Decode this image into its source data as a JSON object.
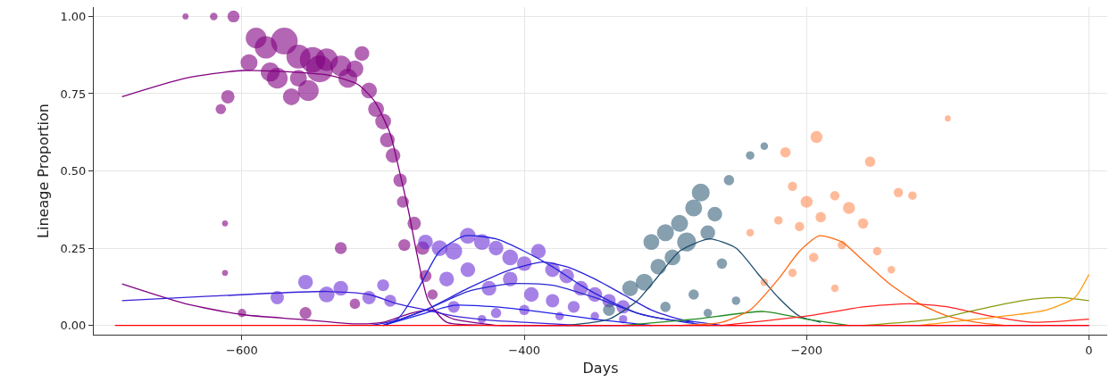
{
  "chart_data": {
    "type": "line",
    "xlabel": "Days",
    "ylabel": "Lineage Proportion",
    "xlim": [
      -705,
      13
    ],
    "ylim": [
      -0.03,
      1.03
    ],
    "xticks": [
      {
        "value": -600,
        "label": "−600"
      },
      {
        "value": -400,
        "label": "−400"
      },
      {
        "value": -200,
        "label": "−200"
      },
      0
    ],
    "yticks": [
      {
        "value": 0,
        "label": "0.00"
      },
      {
        "value": 0.25,
        "label": "0.25"
      },
      {
        "value": 0.5,
        "label": "0.50"
      },
      {
        "value": 0.75,
        "label": "0.75"
      },
      {
        "value": 1,
        "label": "1.00"
      }
    ],
    "grid": true,
    "line_style": "solid",
    "series": [
      {
        "type": "bubble",
        "color": "#800080",
        "x": [
          -640,
          -620,
          -606,
          -590,
          -583,
          -570,
          -560,
          -550,
          -545,
          -540,
          -530,
          -525,
          -520,
          -575,
          -595,
          -580,
          -560,
          -553,
          -565,
          -515,
          -510,
          -505,
          -500,
          -497,
          -493,
          -488,
          -486,
          -478,
          -472,
          -485,
          -470,
          -465,
          -610,
          -615,
          -612,
          -612,
          -600,
          -555,
          -520,
          -530
        ],
        "values": [
          1.0,
          1.0,
          1.0,
          0.93,
          0.9,
          0.92,
          0.87,
          0.86,
          0.83,
          0.86,
          0.84,
          0.8,
          0.83,
          0.8,
          0.85,
          0.82,
          0.8,
          0.76,
          0.74,
          0.88,
          0.76,
          0.7,
          0.66,
          0.6,
          0.55,
          0.47,
          0.4,
          0.33,
          0.25,
          0.26,
          0.16,
          0.1,
          0.74,
          0.7,
          0.33,
          0.17,
          0.04,
          0.04,
          0.07,
          0.25
        ],
        "sizes": [
          0.05,
          0.08,
          0.2,
          0.6,
          0.7,
          1.0,
          0.8,
          0.9,
          1.0,
          0.7,
          0.6,
          0.5,
          0.4,
          0.6,
          0.4,
          0.5,
          0.4,
          0.6,
          0.4,
          0.3,
          0.35,
          0.35,
          0.35,
          0.3,
          0.3,
          0.25,
          0.2,
          0.25,
          0.25,
          0.2,
          0.2,
          0.15,
          0.25,
          0.15,
          0.05,
          0.05,
          0.1,
          0.2,
          0.15,
          0.2
        ]
      },
      {
        "type": "bubble",
        "color": "#6a2fd6",
        "x": [
          -470,
          -460,
          -450,
          -440,
          -430,
          -420,
          -410,
          -400,
          -390,
          -380,
          -370,
          -360,
          -350,
          -340,
          -330,
          -455,
          -440,
          -425,
          -410,
          -395,
          -380,
          -365,
          -450,
          -420,
          -400,
          -375,
          -350,
          -430,
          -330,
          -555,
          -530,
          -510,
          -495,
          -500,
          -575,
          -540
        ],
        "values": [
          0.27,
          0.25,
          0.24,
          0.29,
          0.27,
          0.25,
          0.22,
          0.2,
          0.24,
          0.18,
          0.16,
          0.12,
          0.1,
          0.08,
          0.06,
          0.15,
          0.18,
          0.12,
          0.15,
          0.1,
          0.08,
          0.06,
          0.06,
          0.04,
          0.05,
          0.03,
          0.03,
          0.02,
          0.02,
          0.14,
          0.12,
          0.09,
          0.08,
          0.13,
          0.09,
          0.1
        ],
        "sizes": [
          0.3,
          0.35,
          0.4,
          0.35,
          0.35,
          0.3,
          0.35,
          0.3,
          0.3,
          0.3,
          0.3,
          0.3,
          0.3,
          0.25,
          0.25,
          0.3,
          0.3,
          0.3,
          0.3,
          0.3,
          0.25,
          0.2,
          0.2,
          0.15,
          0.15,
          0.1,
          0.1,
          0.1,
          0.1,
          0.3,
          0.3,
          0.25,
          0.2,
          0.2,
          0.25,
          0.35
        ]
      },
      {
        "type": "bubble",
        "color": "#36607a",
        "x": [
          -310,
          -300,
          -290,
          -280,
          -275,
          -285,
          -270,
          -265,
          -295,
          -305,
          -315,
          -325,
          -255,
          -240,
          -230,
          -280,
          -260,
          -250,
          -300,
          -270,
          -340
        ],
        "values": [
          0.27,
          0.3,
          0.33,
          0.38,
          0.43,
          0.27,
          0.3,
          0.36,
          0.22,
          0.19,
          0.14,
          0.12,
          0.47,
          0.55,
          0.58,
          0.1,
          0.2,
          0.08,
          0.06,
          0.04,
          0.05
        ],
        "sizes": [
          0.35,
          0.4,
          0.4,
          0.4,
          0.45,
          0.5,
          0.3,
          0.3,
          0.35,
          0.35,
          0.4,
          0.35,
          0.15,
          0.1,
          0.08,
          0.15,
          0.15,
          0.1,
          0.15,
          0.1,
          0.2
        ]
      },
      {
        "type": "bubble",
        "color": "#ff8c55",
        "x": [
          -193,
          -215,
          -155,
          -210,
          -180,
          -170,
          -200,
          -190,
          -205,
          -220,
          -240,
          -160,
          -135,
          -125,
          -175,
          -150,
          -195,
          -210,
          -140,
          -100,
          -230,
          -180
        ],
        "values": [
          0.61,
          0.56,
          0.53,
          0.45,
          0.42,
          0.38,
          0.4,
          0.35,
          0.32,
          0.34,
          0.3,
          0.33,
          0.43,
          0.42,
          0.26,
          0.24,
          0.22,
          0.17,
          0.18,
          0.67,
          0.14,
          0.12
        ],
        "sizes": [
          0.2,
          0.15,
          0.15,
          0.12,
          0.12,
          0.2,
          0.2,
          0.15,
          0.12,
          0.1,
          0.08,
          0.15,
          0.12,
          0.1,
          0.1,
          0.1,
          0.12,
          0.1,
          0.08,
          0.05,
          0.08,
          0.08
        ]
      },
      {
        "color": "#800080",
        "x": [
          -685,
          -640,
          -599,
          -539,
          -518,
          -506,
          -495,
          -489,
          -482,
          -476,
          -468,
          -455,
          -420,
          -300,
          0
        ],
        "values": [
          0.74,
          0.8,
          0.825,
          0.81,
          0.78,
          0.725,
          0.62,
          0.51,
          0.37,
          0.23,
          0.08,
          0.01,
          0,
          0,
          0
        ]
      },
      {
        "color": "#800080",
        "x": [
          -685,
          -640,
          -600,
          -560,
          -520,
          -500,
          -480,
          -465,
          -450,
          -420
        ],
        "values": [
          0.134,
          0.07,
          0.035,
          0.02,
          0.005,
          0.01,
          0.04,
          0.05,
          0.02,
          0
        ]
      },
      {
        "color": "#3a22d8",
        "x": [
          -685,
          -620,
          -540,
          -510,
          -490,
          -470,
          -450,
          -420,
          -400,
          -360
        ],
        "values": [
          0.08,
          0.095,
          0.11,
          0.1,
          0.07,
          0.05,
          0.03,
          0.015,
          0.01,
          0
        ]
      },
      {
        "color": "#2222e0",
        "x": [
          -510,
          -490,
          -475,
          -460,
          -442,
          -420,
          -400,
          -380,
          -360,
          -340,
          -320,
          -300,
          -280
        ],
        "values": [
          0,
          0.02,
          0.12,
          0.24,
          0.29,
          0.28,
          0.24,
          0.19,
          0.13,
          0.08,
          0.04,
          0.02,
          0.01
        ]
      },
      {
        "color": "#2a1ed8",
        "x": [
          -500,
          -470,
          -440,
          -410,
          -387,
          -370,
          -350,
          -330,
          -310,
          -290,
          -260
        ],
        "values": [
          0,
          0.05,
          0.12,
          0.18,
          0.205,
          0.19,
          0.15,
          0.1,
          0.05,
          0.02,
          0
        ]
      },
      {
        "color": "#2828d0",
        "x": [
          -500,
          -470,
          -440,
          -410,
          -380,
          -350,
          -320,
          -300,
          -270
        ],
        "values": [
          0,
          0.05,
          0.11,
          0.135,
          0.13,
          0.09,
          0.04,
          0.02,
          0
        ]
      },
      {
        "color": "#2020e8",
        "x": [
          -500,
          -470,
          -450,
          -420,
          -390,
          -350,
          -310
        ],
        "values": [
          0,
          0.04,
          0.065,
          0.06,
          0.045,
          0.02,
          0
        ]
      },
      {
        "color": "#1f4e6e",
        "x": [
          -370,
          -340,
          -320,
          -305,
          -290,
          -269,
          -250,
          -235,
          -220,
          -205,
          -190
        ],
        "values": [
          0,
          0.02,
          0.08,
          0.16,
          0.24,
          0.28,
          0.25,
          0.17,
          0.09,
          0.03,
          0.01
        ]
      },
      {
        "color": "#228b22",
        "x": [
          -330,
          -280,
          -230,
          -200,
          -170
        ],
        "values": [
          0,
          0.02,
          0.045,
          0.02,
          0
        ]
      },
      {
        "color": "#ff6a14",
        "x": [
          -290,
          -260,
          -240,
          -220,
          -205,
          -191,
          -175,
          -160,
          -140,
          -120,
          -100,
          -80,
          -60
        ],
        "values": [
          0,
          0.01,
          0.05,
          0.15,
          0.24,
          0.29,
          0.27,
          0.21,
          0.13,
          0.07,
          0.03,
          0.01,
          0
        ]
      },
      {
        "color": "#ff2020",
        "x": [
          -260,
          -200,
          -160,
          -127,
          -100,
          -70,
          -40,
          0
        ],
        "values": [
          0,
          0.03,
          0.06,
          0.07,
          0.06,
          0.03,
          0.01,
          0.02
        ]
      },
      {
        "color": "#8a9a10",
        "x": [
          -160,
          -110,
          -70,
          -40,
          -20,
          0
        ],
        "values": [
          0,
          0.02,
          0.06,
          0.085,
          0.09,
          0.08
        ]
      },
      {
        "color": "#ff9a10",
        "x": [
          -120,
          -60,
          -30,
          -10,
          0
        ],
        "values": [
          0,
          0.03,
          0.05,
          0.09,
          0.165
        ]
      },
      {
        "color": "#ff0000",
        "x": [
          -690,
          0
        ],
        "values": [
          0,
          0
        ]
      }
    ]
  }
}
